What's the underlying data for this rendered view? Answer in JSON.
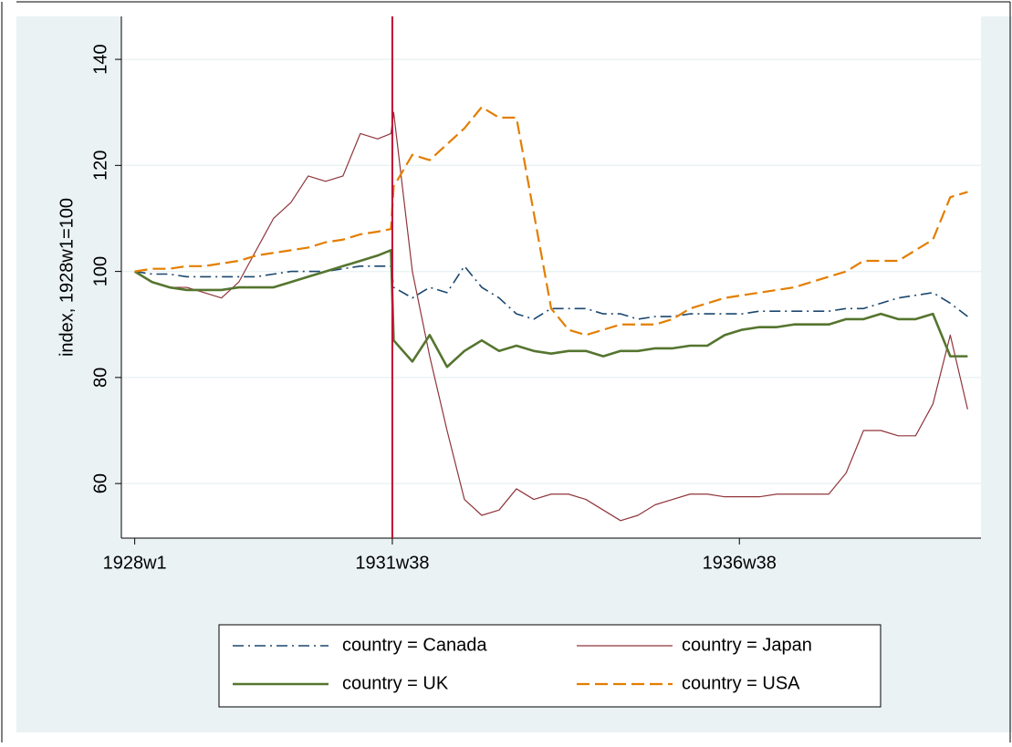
{
  "chart_data": {
    "type": "line",
    "ylabel": "index, 1928w1=100",
    "x": [
      -1664,
      -1651,
      -1638,
      -1625,
      -1612,
      -1599,
      -1586,
      -1573,
      -1560,
      -1547,
      -1534,
      -1521,
      -1508,
      -1495,
      -1482,
      -1472,
      -1470,
      -1456,
      -1443,
      -1430,
      -1417,
      -1404,
      -1391,
      -1378,
      -1365,
      -1352,
      -1339,
      -1326,
      -1313,
      -1300,
      -1287,
      -1274,
      -1261,
      -1248,
      -1235,
      -1222,
      -1209,
      -1196,
      -1183,
      -1170,
      -1157,
      -1144,
      -1131,
      -1118,
      -1105,
      -1092,
      -1079,
      -1066,
      -1053,
      -1040
    ],
    "series": [
      {
        "name": "country = Canada",
        "color": "#1a476f",
        "dash": "dashdot",
        "width": 1.6,
        "values": [
          100,
          99.5,
          99.5,
          99,
          99,
          99,
          99,
          99,
          99.5,
          100,
          100,
          100,
          100.5,
          101,
          101,
          101,
          97,
          95,
          97,
          96,
          101,
          97,
          95,
          92,
          91,
          93,
          93,
          93,
          92,
          92,
          91,
          91.5,
          91.5,
          92,
          92,
          92,
          92,
          92.5,
          92.5,
          92.5,
          92.5,
          92.5,
          93,
          93,
          94,
          95,
          95.5,
          96,
          94,
          91.5
        ]
      },
      {
        "name": "country = Japan",
        "color": "#90353b",
        "dash": "solid",
        "width": 1.2,
        "values": [
          100,
          98,
          97,
          97,
          96,
          95,
          98,
          104,
          110,
          113,
          118,
          117,
          118,
          126,
          125,
          126,
          130,
          100,
          84,
          70,
          57,
          54,
          55,
          59,
          57,
          58,
          58,
          57,
          55,
          53,
          54,
          56,
          57,
          58,
          58,
          57.5,
          57.5,
          57.5,
          58,
          58,
          58,
          58,
          62,
          70,
          70,
          69,
          69,
          75,
          88,
          74
        ]
      },
      {
        "name": "country = UK",
        "color": "#55752f",
        "dash": "solid",
        "width": 2.6,
        "values": [
          100,
          98,
          97,
          96.5,
          96.5,
          96.5,
          97,
          97,
          97,
          98,
          99,
          100,
          101,
          102,
          103,
          104,
          87,
          83,
          88,
          82,
          85,
          87,
          85,
          86,
          85,
          84.5,
          85,
          85,
          84,
          85,
          85,
          85.5,
          85.5,
          86,
          86,
          88,
          89,
          89.5,
          89.5,
          90,
          90,
          90,
          91,
          91,
          92,
          91,
          91,
          92,
          84,
          84
        ]
      },
      {
        "name": "country = USA",
        "color": "#e37e00",
        "dash": "dash",
        "width": 2.2,
        "values": [
          100,
          100.5,
          100.5,
          101,
          101,
          101.5,
          102,
          103,
          103.5,
          104,
          104.5,
          105.5,
          106,
          107,
          107.5,
          108,
          116,
          122,
          121,
          124,
          127,
          131,
          129,
          129,
          111,
          93,
          89,
          88,
          89,
          90,
          90,
          90,
          91,
          93,
          94,
          95,
          95.5,
          96,
          96.5,
          97,
          98,
          99,
          100,
          102,
          102,
          102,
          104,
          106,
          114,
          115
        ]
      }
    ],
    "xlim": [
      -1674,
      -1030
    ],
    "xticks": [
      {
        "value": -1664,
        "label": "1928w1"
      },
      {
        "value": -1471,
        "label": "1931w38"
      },
      {
        "value": -1211,
        "label": "1936w38"
      }
    ],
    "ylim": [
      49.7,
      148.1
    ],
    "yticks": [
      60,
      80,
      100,
      120,
      140
    ],
    "grid": true,
    "xline": -1471,
    "xline_color": "#c10534",
    "legend_position": "bottom"
  }
}
